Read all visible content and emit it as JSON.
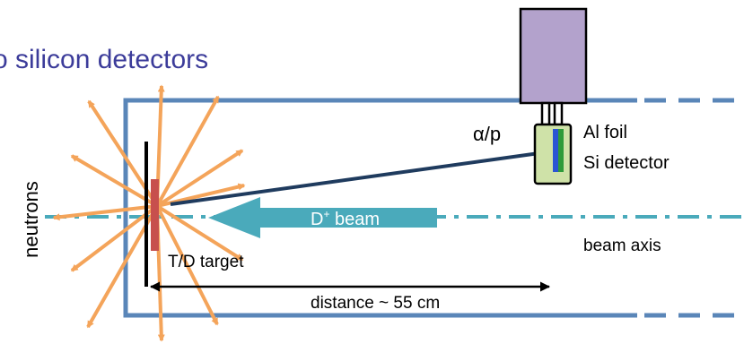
{
  "title": "o silicon detectors",
  "labels": {
    "neutrons": "neutrons",
    "alpha_p": "α/p",
    "al_foil": "Al foil",
    "si_detector": "Si detector",
    "beam_base": "D",
    "beam_sup": "+",
    "beam_rest": " beam",
    "beam_axis": "beam axis",
    "target": "T/D target",
    "distance": "distance ~ 55 cm"
  },
  "colors": {
    "title": "#3c3c9a",
    "chamber": "#5a86b8",
    "arrows": "#f4a45a",
    "detector_box": "#b3a2cc",
    "beam": "#4aaabb",
    "target": "#c7504d",
    "si_holder": "#cfe2a8",
    "si_green": "#2e9b3a",
    "si_blue": "#2a55d4",
    "track": "#1f3b5e"
  },
  "icons": [
    "detector-housing",
    "silicon-detector-icon",
    "neutron-arrows"
  ]
}
